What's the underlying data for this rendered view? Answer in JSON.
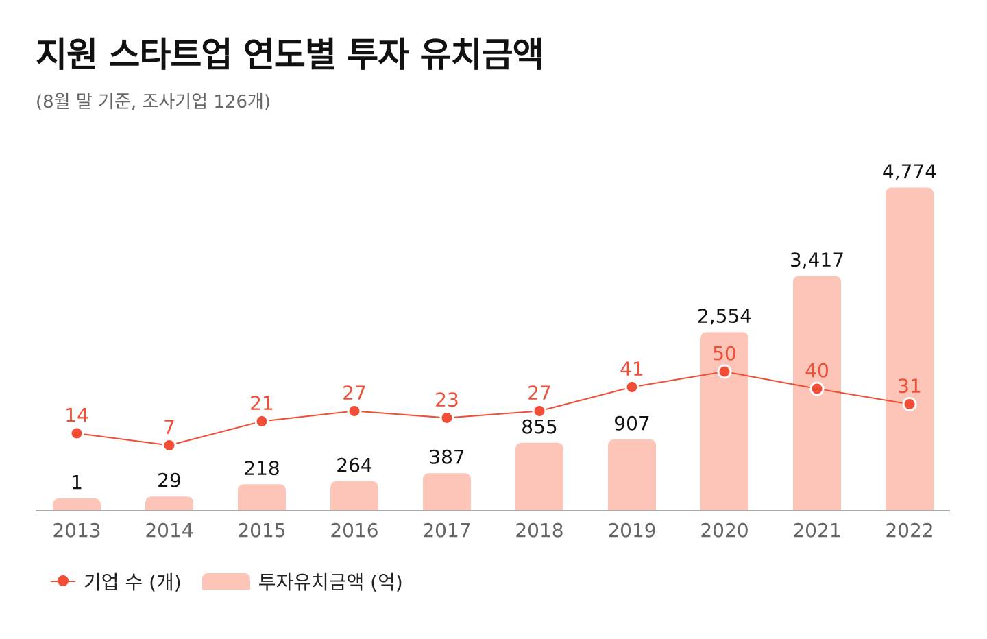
{
  "title": "지원 스타트업 연도별 투자 유치금액",
  "subtitle": "(8월 말 기준, 조사기업 126개)",
  "chart_data": {
    "type": "bar+line",
    "categories": [
      "2013",
      "2014",
      "2015",
      "2016",
      "2017",
      "2018",
      "2019",
      "2020",
      "2021",
      "2022"
    ],
    "series": [
      {
        "name": "투자유치금액 (억)",
        "type": "bar",
        "color": "#fdc4b8",
        "label_color": "#111111",
        "values": [
          1,
          29,
          218,
          264,
          387,
          855,
          907,
          2554,
          3417,
          4774
        ],
        "labels": [
          "1",
          "29",
          "218",
          "264",
          "387",
          "855",
          "907",
          "2,554",
          "3,417",
          "4,774"
        ]
      },
      {
        "name": "기업 수 (개)",
        "type": "line",
        "color": "#f04e37",
        "values": [
          14,
          7,
          21,
          27,
          23,
          27,
          41,
          50,
          40,
          31
        ]
      }
    ],
    "grid": false,
    "legend": "bottom-left"
  }
}
